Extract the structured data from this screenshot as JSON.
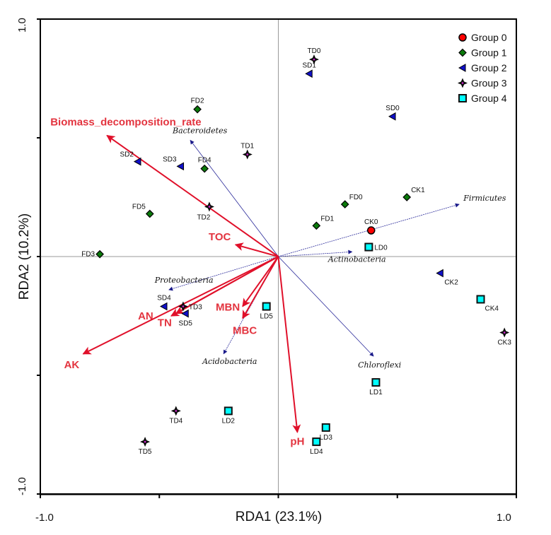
{
  "chart_data": {
    "type": "scatter",
    "subtype": "RDA biplot",
    "title": "",
    "xlabel": "RDA1 (23.1%)",
    "ylabel": "RDA2  (10.2%)",
    "xlim": [
      -1.0,
      1.0
    ],
    "ylim": [
      -1.0,
      1.0
    ],
    "x_tick_labels": [
      "-1.0",
      "1.0"
    ],
    "y_tick_labels": [
      "1.0",
      "-1.0"
    ],
    "x_ticks": [
      -1.0,
      -0.5,
      0.0,
      0.5,
      1.0
    ],
    "y_ticks": [
      -1.0,
      -0.5,
      0.0,
      0.5,
      1.0
    ],
    "zero_lines": true,
    "legend_position": "top-right",
    "groups": [
      {
        "name": "Group 0",
        "marker": "circle",
        "fill": "#ff0000"
      },
      {
        "name": "Group 1",
        "marker": "diamond",
        "fill": "#0a7a0a"
      },
      {
        "name": "Group 2",
        "marker": "triangle-left",
        "fill": "#1010c8"
      },
      {
        "name": "Group 3",
        "marker": "star4",
        "fill": "#d020d0"
      },
      {
        "name": "Group 4",
        "marker": "square",
        "fill": "#00ffff"
      }
    ],
    "samples": [
      {
        "label": "CK0",
        "group": 0,
        "x": 0.39,
        "y": 0.11,
        "lpos": "top"
      },
      {
        "label": "CK1",
        "group": 1,
        "x": 0.54,
        "y": 0.25,
        "lpos": "top-right"
      },
      {
        "label": "FD0",
        "group": 1,
        "x": 0.28,
        "y": 0.22,
        "lpos": "top-right"
      },
      {
        "label": "FD1",
        "group": 1,
        "x": 0.16,
        "y": 0.13,
        "lpos": "top-right"
      },
      {
        "label": "FD2",
        "group": 1,
        "x": -0.34,
        "y": 0.62,
        "lpos": "top"
      },
      {
        "label": "FD3",
        "group": 1,
        "x": -0.75,
        "y": 0.01,
        "lpos": "left"
      },
      {
        "label": "FD4",
        "group": 1,
        "x": -0.31,
        "y": 0.37,
        "lpos": "top"
      },
      {
        "label": "FD5",
        "group": 1,
        "x": -0.54,
        "y": 0.18,
        "lpos": "top-left"
      },
      {
        "label": "CK2",
        "group": 2,
        "x": 0.68,
        "y": -0.07,
        "lpos": "bottom-right"
      },
      {
        "label": "SD0",
        "group": 2,
        "x": 0.48,
        "y": 0.59,
        "lpos": "top"
      },
      {
        "label": "SD1",
        "group": 2,
        "x": 0.13,
        "y": 0.77,
        "lpos": "top"
      },
      {
        "label": "SD2",
        "group": 2,
        "x": -0.59,
        "y": 0.4,
        "lpos": "top-left"
      },
      {
        "label": "SD3",
        "group": 2,
        "x": -0.41,
        "y": 0.38,
        "lpos": "top-left"
      },
      {
        "label": "SD4",
        "group": 2,
        "x": -0.48,
        "y": -0.21,
        "lpos": "top"
      },
      {
        "label": "SD5",
        "group": 2,
        "x": -0.39,
        "y": -0.24,
        "lpos": "bottom"
      },
      {
        "label": "CK3",
        "group": 3,
        "x": 0.95,
        "y": -0.32,
        "lpos": "bottom"
      },
      {
        "label": "TD0",
        "group": 3,
        "x": 0.15,
        "y": 0.83,
        "lpos": "top"
      },
      {
        "label": "TD1",
        "group": 3,
        "x": -0.13,
        "y": 0.43,
        "lpos": "top"
      },
      {
        "label": "TD2",
        "group": 3,
        "x": -0.29,
        "y": 0.21,
        "lpos": "bottom-left"
      },
      {
        "label": "TD3",
        "group": 3,
        "x": -0.4,
        "y": -0.21,
        "lpos": "right"
      },
      {
        "label": "TD4",
        "group": 3,
        "x": -0.43,
        "y": -0.65,
        "lpos": "bottom"
      },
      {
        "label": "TD5",
        "group": 3,
        "x": -0.56,
        "y": -0.78,
        "lpos": "bottom"
      },
      {
        "label": "CK4",
        "group": 4,
        "x": 0.85,
        "y": -0.18,
        "lpos": "bottom-right"
      },
      {
        "label": "LD0",
        "group": 4,
        "x": 0.38,
        "y": 0.04,
        "lpos": "right"
      },
      {
        "label": "LD1",
        "group": 4,
        "x": 0.41,
        "y": -0.53,
        "lpos": "bottom"
      },
      {
        "label": "LD2",
        "group": 4,
        "x": -0.21,
        "y": -0.65,
        "lpos": "bottom"
      },
      {
        "label": "LD3",
        "group": 4,
        "x": 0.2,
        "y": -0.72,
        "lpos": "bottom"
      },
      {
        "label": "LD4",
        "group": 4,
        "x": 0.16,
        "y": -0.78,
        "lpos": "bottom"
      },
      {
        "label": "LD5",
        "group": 4,
        "x": -0.05,
        "y": -0.21,
        "lpos": "bottom"
      }
    ],
    "env_vectors": [
      {
        "label": "Biomass_decomposition_rate",
        "x": -0.72,
        "y": 0.51
      },
      {
        "label": "TOC",
        "x": -0.18,
        "y": 0.05
      },
      {
        "label": "AN",
        "x": -0.45,
        "y": -0.25
      },
      {
        "label": "TN",
        "x": -0.43,
        "y": -0.24
      },
      {
        "label": "AK",
        "x": -0.82,
        "y": -0.41
      },
      {
        "label": "MBN",
        "x": -0.15,
        "y": -0.21
      },
      {
        "label": "MBC",
        "x": -0.15,
        "y": -0.26
      },
      {
        "label": "pH",
        "x": 0.08,
        "y": -0.74
      }
    ],
    "species_vectors": [
      {
        "label": "Bacteroidetes",
        "x": -0.37,
        "y": 0.49
      },
      {
        "label": "Firmicutes",
        "x": 0.76,
        "y": 0.22
      },
      {
        "label": "Actinobacteria",
        "x": 0.31,
        "y": 0.02
      },
      {
        "label": "Proteobacteria",
        "x": -0.46,
        "y": -0.14
      },
      {
        "label": "Acidobacteria",
        "x": -0.23,
        "y": -0.41
      },
      {
        "label": "Chloroflexi",
        "x": 0.4,
        "y": -0.42
      }
    ],
    "colors": {
      "env_arrow": "#e0102a",
      "env_label": "#e3343f",
      "species_arrow": "#2a2a9a",
      "frame": "#000000",
      "zero_line": "#9a9a9a"
    }
  }
}
